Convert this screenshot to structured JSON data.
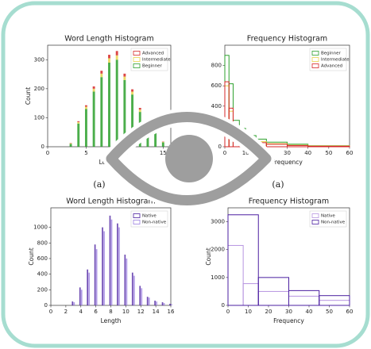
{
  "chart_data": [
    {
      "type": "bar",
      "stacked": true,
      "title": "Word Length Histogram",
      "x_label": "Length",
      "y_label": "Count",
      "caption": "(a)",
      "x": [
        3,
        4,
        5,
        6,
        7,
        8,
        9,
        10,
        11,
        12,
        13,
        14,
        15
      ],
      "series": [
        {
          "name": "Beginner",
          "color": "#2ca02c",
          "values": [
            10,
            80,
            130,
            190,
            240,
            290,
            300,
            230,
            180,
            120,
            80,
            50,
            15
          ]
        },
        {
          "name": "Intermediate",
          "color": "#e8d44d",
          "values": [
            2,
            5,
            8,
            10,
            12,
            15,
            15,
            12,
            10,
            8,
            5,
            3,
            2
          ]
        },
        {
          "name": "Advanced",
          "color": "#d62728",
          "values": [
            1,
            3,
            5,
            8,
            10,
            12,
            15,
            10,
            8,
            6,
            4,
            2,
            1
          ]
        }
      ],
      "legend_order": [
        2,
        1,
        0
      ],
      "legend": "upper right",
      "xlim": [
        0,
        16
      ],
      "xticks": [
        0,
        5,
        10,
        15
      ],
      "ylim": [
        0,
        350
      ],
      "yticks": [
        0,
        100,
        200,
        300
      ]
    },
    {
      "type": "histogram",
      "title": "Frequency Histogram",
      "x_label": "Frequency",
      "caption": "(a)",
      "series": [
        {
          "name": "Beginner",
          "color": "#2ca02c",
          "bins": [
            0,
            2,
            4,
            7,
            10,
            15,
            20,
            30,
            40,
            60
          ],
          "values": [
            900,
            620,
            260,
            180,
            110,
            75,
            45,
            25,
            10
          ]
        },
        {
          "name": "Intermediate",
          "color": "#e8d44d",
          "bins": [
            0,
            2,
            4,
            7,
            10,
            15,
            20,
            30,
            40,
            60
          ],
          "values": [
            600,
            350,
            200,
            130,
            80,
            50,
            30,
            15,
            8
          ]
        },
        {
          "name": "Advanced",
          "color": "#d62728",
          "bins": [
            0,
            2,
            4,
            7,
            10,
            15,
            20,
            30,
            40,
            60
          ],
          "values": [
            640,
            380,
            180,
            110,
            70,
            40,
            25,
            12,
            5
          ]
        }
      ],
      "legend": "upper right",
      "xlim": [
        0,
        60
      ],
      "xticks": [
        0,
        10,
        20,
        30,
        40,
        50,
        60
      ],
      "ylim": [
        0,
        1000
      ],
      "yticks": [
        0,
        200,
        400,
        600,
        800
      ]
    },
    {
      "type": "bar",
      "stacked": false,
      "title": "Word Length Histogram",
      "x_label": "Length",
      "y_label": "Count",
      "x": [
        3,
        4,
        5,
        6,
        7,
        8,
        9,
        10,
        11,
        12,
        13,
        14,
        15,
        16
      ],
      "series": [
        {
          "name": "Native",
          "color": "#4b1fa0",
          "values": [
            50,
            230,
            460,
            780,
            1000,
            1150,
            1050,
            650,
            420,
            250,
            110,
            60,
            40,
            20
          ]
        },
        {
          "name": "Non-native",
          "color": "#9b7fe0",
          "values": [
            40,
            200,
            420,
            720,
            950,
            1100,
            1000,
            600,
            380,
            220,
            100,
            50,
            30,
            15
          ]
        }
      ],
      "legend": "upper right",
      "xlim": [
        0,
        16
      ],
      "xticks": [
        0,
        2,
        4,
        6,
        8,
        10,
        12,
        14,
        16
      ],
      "ylim": [
        0,
        1250
      ],
      "yticks": [
        0,
        200,
        400,
        600,
        800,
        1000
      ]
    },
    {
      "type": "histogram",
      "title": "Frequency Histogram",
      "x_label": "Frequency",
      "y_label": "Count",
      "series": [
        {
          "name": "Native",
          "color": "#b795e0",
          "bins": [
            0,
            7.5,
            15,
            30,
            45,
            60
          ],
          "values": [
            2150,
            780,
            500,
            330,
            180
          ]
        },
        {
          "name": "Non-native",
          "color": "#4b1fa0",
          "bins": [
            0,
            15,
            30,
            45,
            60
          ],
          "values": [
            3250,
            1000,
            530,
            350
          ]
        }
      ],
      "legend": "upper right",
      "xlim": [
        0,
        60
      ],
      "xticks": [
        0,
        10,
        20,
        30,
        40,
        50,
        60
      ],
      "ylim": [
        0,
        3500
      ],
      "yticks": [
        0,
        1000,
        2000,
        3000
      ]
    }
  ]
}
